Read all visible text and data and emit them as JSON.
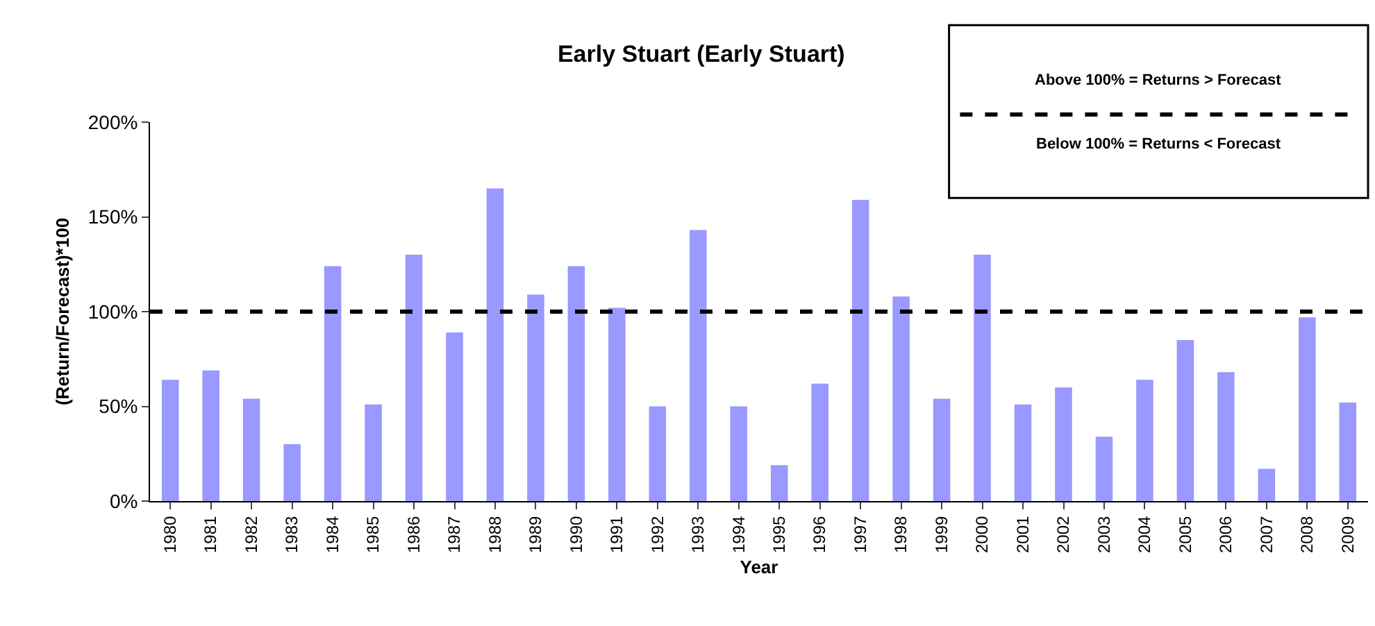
{
  "chart_data": {
    "type": "bar",
    "title": "Early Stuart (Early Stuart)",
    "xlabel": "Year",
    "ylabel": "(Return/Forecast)*100",
    "categories": [
      "1980",
      "1981",
      "1982",
      "1983",
      "1984",
      "1985",
      "1986",
      "1987",
      "1988",
      "1989",
      "1990",
      "1991",
      "1992",
      "1993",
      "1994",
      "1995",
      "1996",
      "1997",
      "1998",
      "1999",
      "2000",
      "2001",
      "2002",
      "2003",
      "2004",
      "2005",
      "2006",
      "2007",
      "2008",
      "2009"
    ],
    "series": [
      {
        "color": "#9999ff",
        "values": [
          64,
          69,
          54,
          30,
          124,
          51,
          130,
          89,
          165,
          109,
          124,
          102,
          50,
          143,
          50,
          19,
          62,
          159,
          108,
          54,
          130,
          51,
          60,
          34,
          64,
          85,
          68,
          17,
          97,
          52
        ]
      }
    ],
    "ylim": [
      0,
      200
    ],
    "yticks": [
      {
        "value": 0,
        "label": "0%"
      },
      {
        "value": 50,
        "label": "50%"
      },
      {
        "value": 100,
        "label": "100%"
      },
      {
        "value": 150,
        "label": "150%"
      },
      {
        "value": 200,
        "label": "200%"
      }
    ],
    "ref_lines": [
      {
        "axis": "y",
        "value": 100,
        "color": "#000000",
        "line_style": "dashed"
      }
    ],
    "annotations": [
      "Above 100% = Returns > Forecast",
      "Below 100% = Returns < Forecast"
    ]
  }
}
